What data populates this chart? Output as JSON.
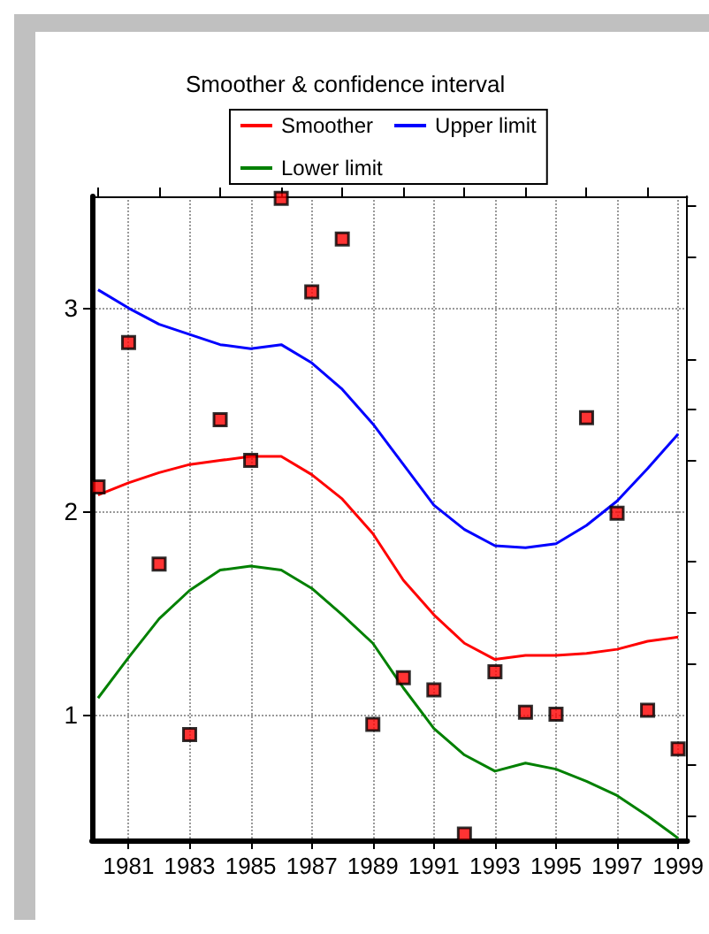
{
  "chart_data": {
    "type": "line",
    "title": "Smoother & confidence interval",
    "x": [
      1980,
      1981,
      1982,
      1983,
      1984,
      1985,
      1986,
      1987,
      1988,
      1989,
      1990,
      1991,
      1992,
      1993,
      1994,
      1995,
      1996,
      1997,
      1998,
      1999
    ],
    "series": [
      {
        "type": "scatter",
        "color": "#ff0000",
        "marker": "square",
        "values": [
          2.12,
          2.83,
          1.74,
          0.9,
          2.45,
          2.25,
          3.54,
          3.08,
          3.34,
          0.95,
          1.18,
          1.12,
          0.41,
          1.21,
          1.01,
          1.0,
          2.46,
          1.99,
          1.02,
          0.83
        ]
      },
      {
        "name": "Smoother",
        "color": "#ff0000",
        "marker": "none",
        "values": [
          2.08,
          2.14,
          2.19,
          2.23,
          2.25,
          2.27,
          2.27,
          2.18,
          2.06,
          1.89,
          1.66,
          1.49,
          1.35,
          1.27,
          1.29,
          1.29,
          1.3,
          1.32,
          1.36,
          1.38
        ]
      },
      {
        "name": "Upper limit",
        "color": "#0000ff",
        "marker": "none",
        "values": [
          3.09,
          3.0,
          2.92,
          2.87,
          2.82,
          2.8,
          2.82,
          2.73,
          2.6,
          2.43,
          2.23,
          2.03,
          1.91,
          1.83,
          1.82,
          1.84,
          1.93,
          2.05,
          2.21,
          2.38
        ]
      },
      {
        "name": "Lower limit",
        "color": "#008000",
        "marker": "none",
        "values": [
          1.08,
          1.28,
          1.47,
          1.61,
          1.71,
          1.73,
          1.71,
          1.62,
          1.49,
          1.35,
          1.13,
          0.93,
          0.8,
          0.72,
          0.76,
          0.73,
          0.67,
          0.6,
          0.5,
          0.39
        ]
      }
    ],
    "xlim": [
      1979.8,
      1999.3
    ],
    "xticks": [
      {
        "value": 1980,
        "label": null
      },
      1981,
      {
        "value": 1982,
        "label": null
      },
      1983,
      {
        "value": 1984,
        "label": null
      },
      1985,
      {
        "value": 1986,
        "label": null
      },
      1987,
      {
        "value": 1988,
        "label": null
      },
      1989,
      {
        "value": 1990,
        "label": null
      },
      1991,
      {
        "value": 1992,
        "label": null
      },
      1993,
      {
        "value": 1994,
        "label": null
      },
      1995,
      {
        "value": 1996,
        "label": null
      },
      1997,
      {
        "value": 1998,
        "label": null
      },
      1999
    ],
    "ylim": [
      0.38,
      3.55
    ],
    "yticks": [
      {
        "value": 0.5,
        "label": null
      },
      {
        "value": 0.75,
        "label": null
      },
      1,
      {
        "value": 1.25,
        "label": null
      },
      {
        "value": 1.5,
        "label": null
      },
      {
        "value": 1.75,
        "label": null
      },
      2,
      {
        "value": 2.25,
        "label": null
      },
      {
        "value": 2.5,
        "label": null
      },
      {
        "value": 2.75,
        "label": null
      },
      3,
      {
        "value": 3.25,
        "label": null
      },
      {
        "value": 3.5,
        "label": null
      }
    ],
    "grid": true,
    "legend": "top",
    "line_style": "solid"
  }
}
